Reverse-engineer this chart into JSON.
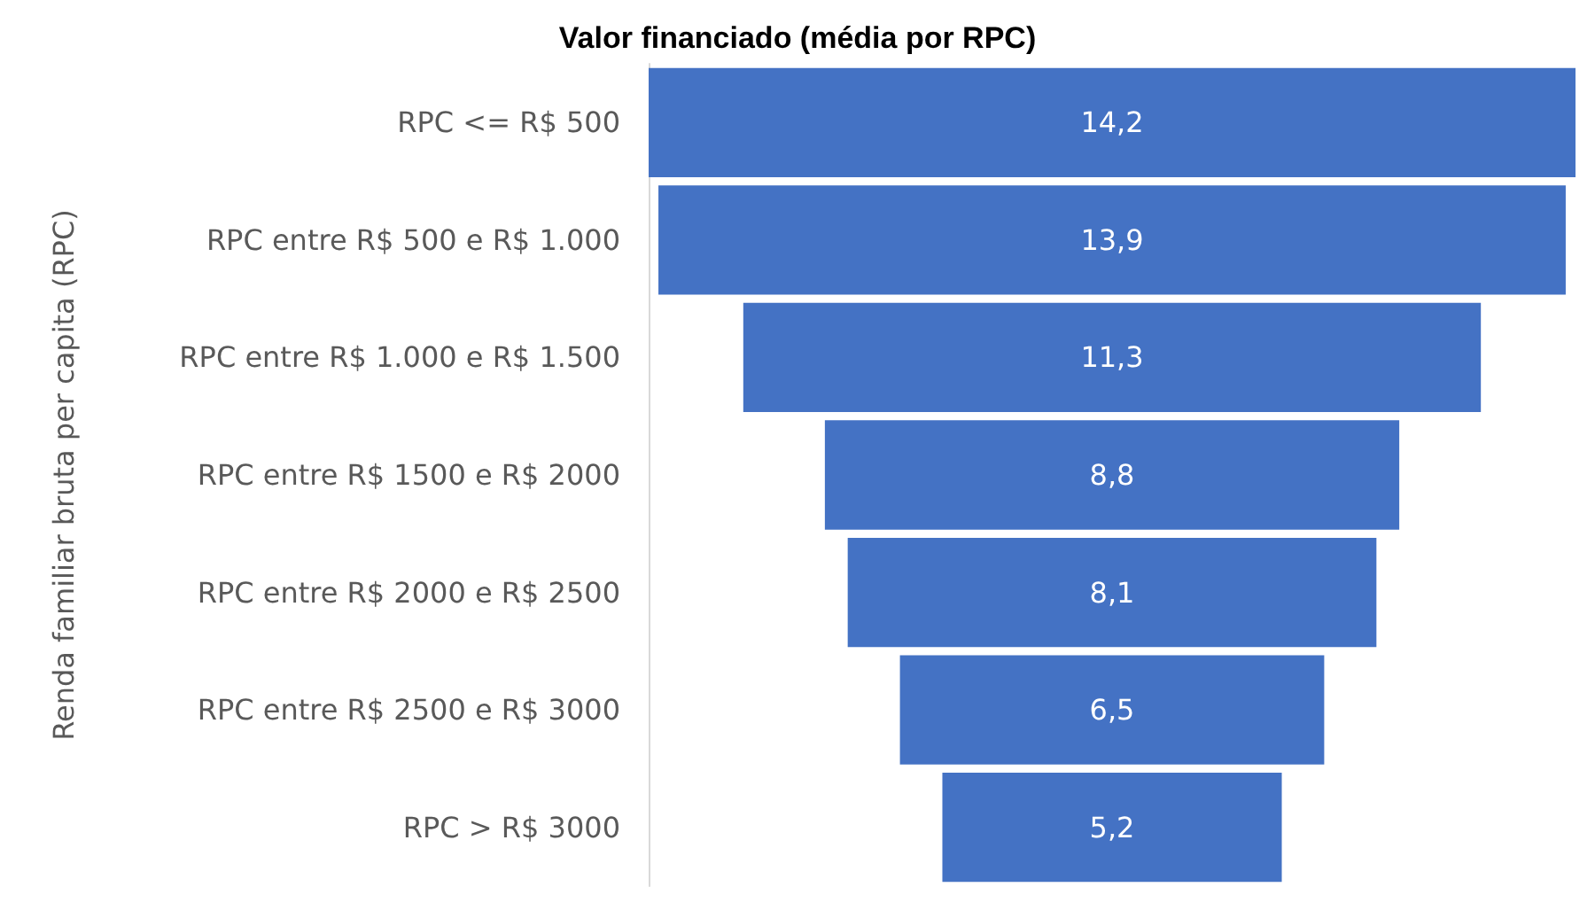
{
  "chart_data": {
    "type": "other",
    "title": "Valor financiado (média por RPC)",
    "ylabel": "Renda familiar bruta per capita (RPC)",
    "categories": [
      "RPC <= R$ 500",
      "RPC entre R$ 500 e R$ 1.000",
      "RPC entre R$ 1.000 e R$ 1.500",
      "RPC entre R$ 1500 e R$ 2000",
      "RPC entre R$ 2000 e R$ 2500",
      "RPC entre R$ 2500 e R$ 3000",
      "RPC > R$ 3000"
    ],
    "values": [
      14.2,
      13.9,
      11.3,
      8.8,
      8.1,
      6.5,
      5.2
    ],
    "value_labels": [
      "14,2",
      "13,9",
      "11,3",
      "8,8",
      "8,1",
      "6,5",
      "5,2"
    ],
    "color": "#4472c4"
  }
}
